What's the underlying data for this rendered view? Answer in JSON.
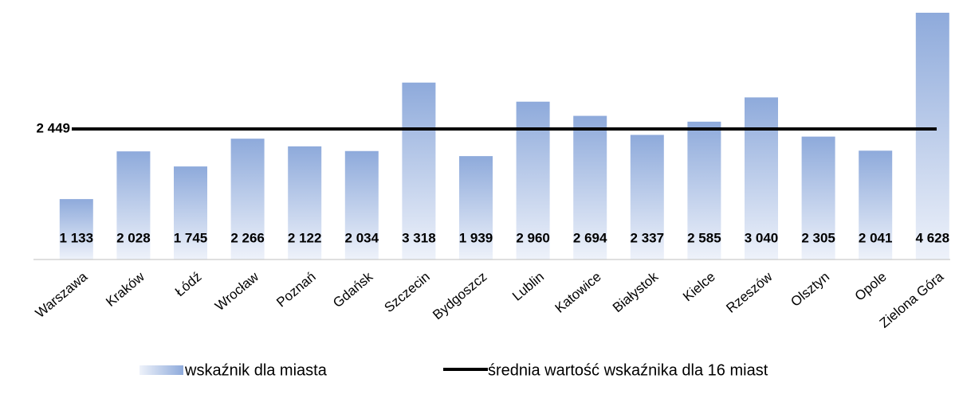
{
  "chart_data": {
    "type": "bar",
    "categories": [
      "Warszawa",
      "Kraków",
      "Łódź",
      "Wrocław",
      "Poznań",
      "Gdańsk",
      "Szczecin",
      "Bydgoszcz",
      "Lublin",
      "Katowice",
      "Białystok",
      "Kielce",
      "Rzeszów",
      "Olsztyn",
      "Opole",
      "Zielona Góra"
    ],
    "series": [
      {
        "name": "wskaźnik dla miasta",
        "color": "#8eaadb",
        "values": [
          1133,
          2028,
          1745,
          2266,
          2122,
          2034,
          3318,
          1939,
          2960,
          2694,
          2337,
          2585,
          3040,
          2305,
          2041,
          4628
        ],
        "value_labels": [
          "1 133",
          "2 028",
          "1 745",
          "2 266",
          "2 122",
          "2 034",
          "3 318",
          "1 939",
          "2 960",
          "2 694",
          "2 337",
          "2 585",
          "3 040",
          "2 305",
          "2 041",
          "4 628"
        ]
      }
    ],
    "average": {
      "name": "średnia wartość wskaźnika dla 16 miast",
      "color": "#000000",
      "value": 2449,
      "label": "2 449"
    },
    "ylim": [
      0,
      4628
    ]
  }
}
